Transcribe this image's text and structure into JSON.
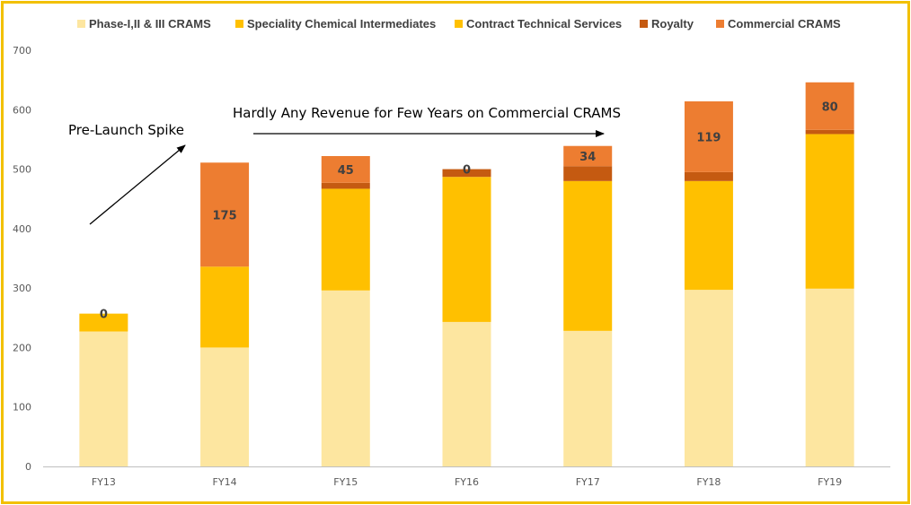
{
  "chart_data": {
    "type": "bar",
    "stacked": true,
    "categories": [
      "FY13",
      "FY14",
      "FY15",
      "FY16",
      "FY17",
      "FY18",
      "FY19"
    ],
    "series": [
      {
        "name": "Phase-I,II & III CRAMS",
        "color": "#FDE6A0",
        "values": [
          227,
          200,
          296,
          243,
          228,
          297,
          299
        ]
      },
      {
        "name": "Speciality Chemical Intermediates",
        "color": "#FFC000",
        "values": [
          0,
          0,
          0,
          0,
          0,
          0,
          0
        ]
      },
      {
        "name": "Contract Technical Services",
        "color": "#FFC000",
        "values": [
          30,
          136,
          171,
          244,
          252,
          183,
          260
        ]
      },
      {
        "name": "Royalty",
        "color": "#C55A11",
        "values": [
          0,
          0,
          10,
          13,
          25,
          15,
          7
        ]
      },
      {
        "name": "Commercial CRAMS",
        "color": "#ED7D31",
        "values": [
          0,
          175,
          45,
          0,
          34,
          119,
          80
        ]
      }
    ],
    "data_labels": {
      "series": "Commercial CRAMS",
      "values": [
        "0",
        "175",
        "45",
        "0",
        "34",
        "119",
        "80"
      ]
    },
    "ylim": [
      0,
      700
    ],
    "yticks": [
      "0",
      "100",
      "200",
      "300",
      "400",
      "500",
      "600",
      "700"
    ],
    "grid": false,
    "legend_position": "top",
    "title": "",
    "xlabel": "",
    "ylabel": "",
    "annotations": [
      {
        "text": "Pre-Launch Spike"
      },
      {
        "text": "Hardly Any Revenue for Few Years on Commercial CRAMS"
      }
    ]
  }
}
